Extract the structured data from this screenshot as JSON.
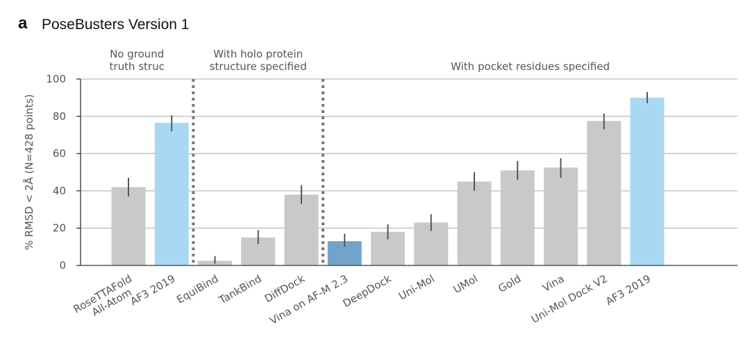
{
  "panel_letter": "a",
  "panel_title": "PoseBusters Version 1",
  "colors": {
    "gray_bar": "#c8c9cb",
    "highlight_bar": "#a9d8f3",
    "dark_blue_bar": "#72a4c9"
  },
  "chart_data": {
    "type": "bar",
    "title": "PoseBusters Version 1",
    "ylabel": "% RMSD < 2Å (N=428 points)",
    "xlabel": "",
    "ylim": [
      0,
      100
    ],
    "yticks": [
      0,
      20,
      40,
      60,
      80,
      100
    ],
    "grid": true,
    "sections": [
      {
        "label_lines": [
          "No ground",
          "truth struc"
        ],
        "start": 0,
        "end": 1
      },
      {
        "label_lines": [
          "With holo protein",
          "structure specified"
        ],
        "start": 2,
        "end": 4
      },
      {
        "label_lines": [
          "With pocket residues specified"
        ],
        "start": 5,
        "end": 14
      }
    ],
    "categories": [
      {
        "label_lines": [
          "RoseTTAFold",
          "All-Atom"
        ],
        "value": 42,
        "err_low": 37,
        "err_high": 47,
        "color": "gray"
      },
      {
        "label_lines": [
          "AF3 2019"
        ],
        "value": 76.5,
        "err_low": 72,
        "err_high": 80.5,
        "color": "highlight"
      },
      {
        "label_lines": [
          "EquiBind"
        ],
        "value": 2.5,
        "err_low": 1,
        "err_high": 5,
        "color": "gray"
      },
      {
        "label_lines": [
          "TankBind"
        ],
        "value": 15,
        "err_low": 11.5,
        "err_high": 19,
        "color": "gray"
      },
      {
        "label_lines": [
          "DiffDock"
        ],
        "value": 38,
        "err_low": 33,
        "err_high": 43,
        "color": "gray"
      },
      {
        "label_lines": [
          "Vina on AF-M 2.3"
        ],
        "value": 13,
        "err_low": 10,
        "err_high": 17,
        "color": "dark"
      },
      {
        "label_lines": [
          "DeepDock"
        ],
        "value": 18,
        "err_low": 14,
        "err_high": 22,
        "color": "gray"
      },
      {
        "label_lines": [
          "Uni-Mol"
        ],
        "value": 23,
        "err_low": 18.5,
        "err_high": 27.5,
        "color": "gray"
      },
      {
        "label_lines": [
          "UMol"
        ],
        "value": 45,
        "err_low": 40,
        "err_high": 50,
        "color": "gray"
      },
      {
        "label_lines": [
          "Gold"
        ],
        "value": 51,
        "err_low": 46,
        "err_high": 56,
        "color": "gray"
      },
      {
        "label_lines": [
          "Vina"
        ],
        "value": 52.5,
        "err_low": 47,
        "err_high": 57.5,
        "color": "gray"
      },
      {
        "label_lines": [
          "Uni-Mol Dock V2"
        ],
        "value": 77.5,
        "err_low": 73,
        "err_high": 81.5,
        "color": "gray"
      },
      {
        "label_lines": [
          "AF3 2019"
        ],
        "value": 90,
        "err_low": 87,
        "err_high": 93,
        "color": "highlight"
      }
    ]
  }
}
